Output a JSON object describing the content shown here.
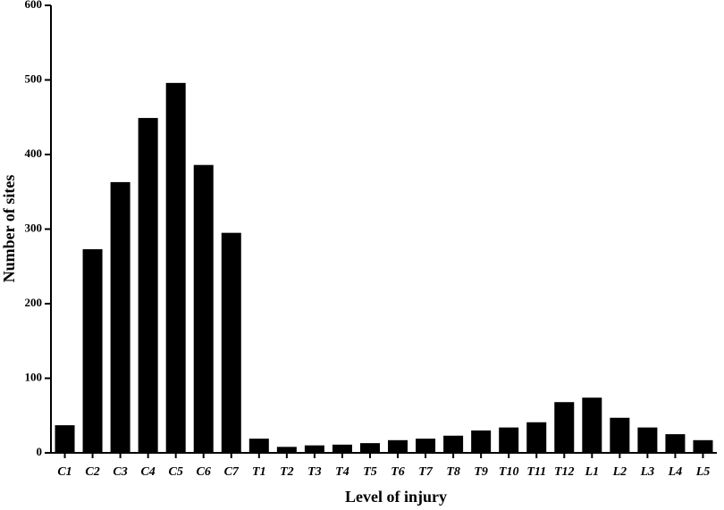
{
  "chart_data": {
    "type": "bar",
    "x_label": "Level of injury",
    "y_label": "Number of sites",
    "categories": [
      "C1",
      "C2",
      "C3",
      "C4",
      "C5",
      "C6",
      "C7",
      "T1",
      "T2",
      "T3",
      "T4",
      "T5",
      "T6",
      "T7",
      "T8",
      "T9",
      "T10",
      "T11",
      "T12",
      "L1",
      "L2",
      "L3",
      "L4",
      "L5"
    ],
    "values": [
      37,
      273,
      363,
      449,
      496,
      386,
      295,
      19,
      8,
      10,
      11,
      13,
      17,
      19,
      23,
      30,
      34,
      41,
      68,
      74,
      47,
      34,
      25,
      17
    ],
    "color": "#000000",
    "ylim": [
      0,
      600
    ],
    "yticks": [
      0,
      100,
      200,
      300,
      400,
      500,
      600
    ]
  }
}
